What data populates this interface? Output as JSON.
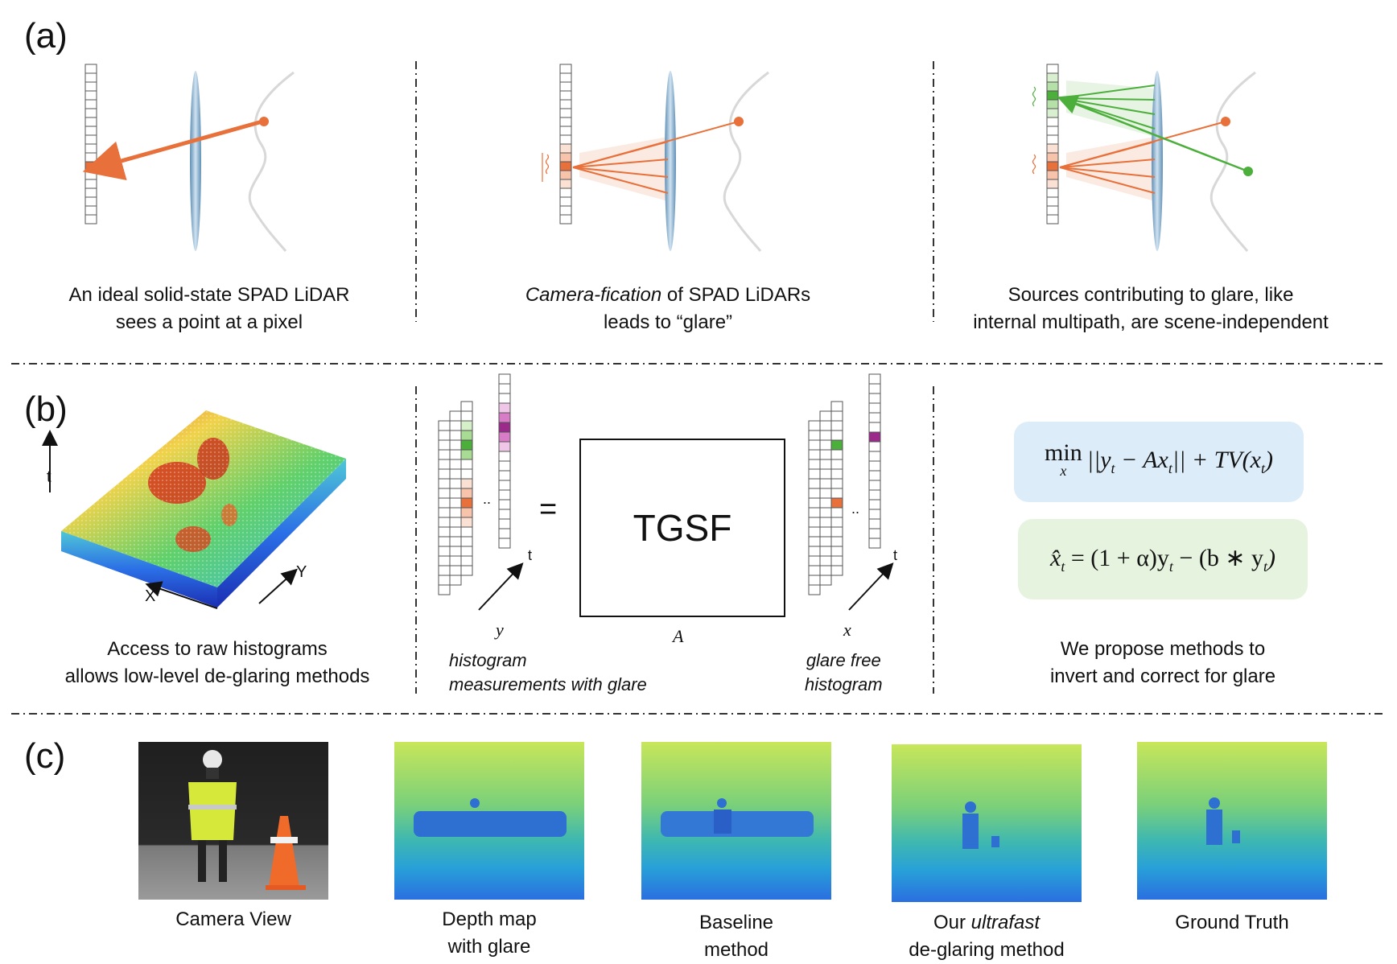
{
  "panels": {
    "a": {
      "label": "(a)",
      "captions": [
        {
          "lines": [
            "An ideal solid-state SPAD LiDAR",
            "sees a point at a pixel"
          ]
        },
        {
          "italic_prefix": "Camera-fication",
          "line1_rest": " of SPAD LiDARs",
          "line2": "leads to “glare”"
        },
        {
          "lines": [
            "Sources contributing to glare, like",
            "internal multipath, are scene-independent"
          ]
        }
      ]
    },
    "b": {
      "label": "(b)",
      "axes": {
        "t": "t",
        "x": "X",
        "y": "Y"
      },
      "left_caption": [
        "Access to raw histograms",
        "allows low-level de-glaring methods"
      ],
      "equals": "=",
      "dots": "..",
      "y_label": "y",
      "t_label": "t",
      "tgsf": "TGSF",
      "a_label": "A",
      "x_label": "x",
      "measure_caption": [
        "histogram",
        "measurements with glare"
      ],
      "glare_free_caption": [
        "glare free",
        "histogram"
      ],
      "eq1": "min ||yₜ − Axₜ|| + TV(xₜ)",
      "eq1_parts": {
        "min": "min",
        "sub": "x",
        "body": "||y",
        "t1": "t",
        "mid": " − Ax",
        "t2": "t",
        "end": "||  + TV(x",
        "t3": "t",
        "close": ")"
      },
      "eq2_parts": {
        "xhat": "x̂",
        "t1": "t",
        "mid": " = (1 + α)y",
        "t2": "t",
        "mid2": " − (b ∗ y",
        "t3": "t",
        "close": ")"
      },
      "right_caption": [
        "We propose methods to",
        "invert and correct for glare"
      ]
    },
    "c": {
      "label": "(c)",
      "thumbs": [
        {
          "caption_lines": [
            "Camera View"
          ]
        },
        {
          "caption_lines": [
            "Depth map",
            "with glare"
          ]
        },
        {
          "caption_lines": [
            "Baseline",
            "method"
          ]
        },
        {
          "caption_prefix": "Our ",
          "caption_italic": "ultrafast",
          "caption_line2": "de-glaring method"
        },
        {
          "caption_lines": [
            "Ground Truth"
          ]
        }
      ]
    }
  },
  "colors": {
    "orange": "#e8703a",
    "green": "#4caf3c",
    "magenta": "#9c2a8a",
    "lens": "#8fb5d3",
    "eq1_bg": "#dcecf8",
    "eq2_bg": "#e6f4df"
  }
}
